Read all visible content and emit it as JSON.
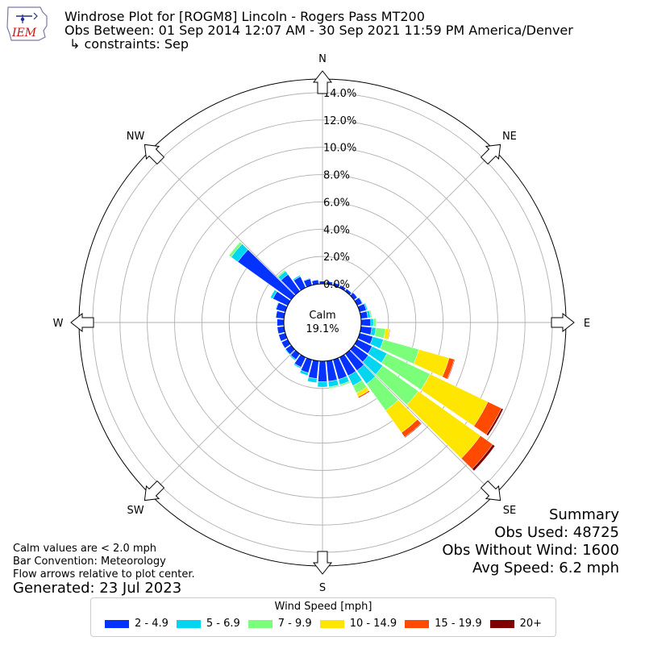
{
  "logo": {
    "text": "IEM"
  },
  "header": {
    "line1": "Windrose Plot for [ROGM8] Lincoln - Rogers Pass MT200",
    "line2": "Obs Between: 01 Sep 2014 12:07 AM - 30 Sep 2021 11:59 PM America/Denver",
    "line3": "↳ constraints: Sep"
  },
  "notes": {
    "calm": "Calm values are < 2.0 mph",
    "convention": "Bar Convention: Meteorology",
    "flow": "Flow arrows relative to plot center.",
    "generated": "Generated: 23 Jul 2023"
  },
  "summary": {
    "title": "Summary",
    "obs_used": "Obs Used: 48725",
    "obs_without_wind": "Obs Without Wind: 1600",
    "avg_speed": "Avg Speed: 6.2 mph"
  },
  "legend": {
    "title": "Wind Speed [mph]",
    "items": [
      {
        "label": "2 - 4.9",
        "color": "#0433ff"
      },
      {
        "label": "5 - 6.9",
        "color": "#00d6f0"
      },
      {
        "label": "7 - 9.9",
        "color": "#7bff7b"
      },
      {
        "label": "10 - 14.9",
        "color": "#ffe600"
      },
      {
        "label": "15 - 19.9",
        "color": "#ff4a00"
      },
      {
        "label": "20+",
        "color": "#7f0000"
      }
    ]
  },
  "chart_data": {
    "type": "windrose",
    "calm_label": "Calm",
    "calm_value": "19.1%",
    "directions": [
      "N",
      "NE",
      "E",
      "SE",
      "S",
      "SW",
      "W",
      "NW"
    ],
    "rlabels": [
      "0.0%",
      "2.0%",
      "4.0%",
      "6.0%",
      "8.0%",
      "10.0%",
      "12.0%",
      "14.0%"
    ],
    "r_range": [
      0,
      15
    ],
    "sector_angles": [
      0,
      10,
      20,
      30,
      40,
      50,
      60,
      70,
      80,
      90,
      100,
      110,
      120,
      130,
      140,
      150,
      160,
      170,
      180,
      190,
      200,
      210,
      220,
      230,
      240,
      250,
      260,
      270,
      280,
      290,
      300,
      310,
      320,
      330,
      340,
      350
    ],
    "bins": [
      "2 - 4.9",
      "5 - 6.9",
      "7 - 9.9",
      "10 - 14.9",
      "15 - 19.9",
      "20+"
    ],
    "colors": [
      "#0433ff",
      "#00d6f0",
      "#7bff7b",
      "#ffe600",
      "#ff4a00",
      "#7f0000"
    ],
    "values": [
      [
        0.2,
        0,
        0,
        0,
        0,
        0
      ],
      [
        0.2,
        0,
        0,
        0,
        0,
        0
      ],
      [
        0.2,
        0,
        0,
        0,
        0,
        0
      ],
      [
        0.2,
        0,
        0,
        0,
        0,
        0
      ],
      [
        0.2,
        0,
        0,
        0,
        0,
        0
      ],
      [
        0.3,
        0,
        0,
        0,
        0,
        0
      ],
      [
        0.4,
        0.05,
        0,
        0,
        0,
        0
      ],
      [
        0.5,
        0.1,
        0,
        0,
        0,
        0
      ],
      [
        0.5,
        0.2,
        0.1,
        0,
        0,
        0
      ],
      [
        0.7,
        0.2,
        0.2,
        0,
        0,
        0
      ],
      [
        0.8,
        0.3,
        0.7,
        0.3,
        0.05,
        0
      ],
      [
        1.0,
        0.8,
        2.7,
        2.3,
        0.4,
        0.05
      ],
      [
        1.2,
        1.2,
        3.5,
        4.7,
        1.1,
        0.15
      ],
      [
        1.3,
        1.3,
        3.2,
        5.6,
        1.1,
        0.2
      ],
      [
        1.5,
        1.2,
        2.4,
        2.0,
        0.4,
        0.05
      ],
      [
        1.5,
        0.8,
        0.6,
        0.3,
        0.1,
        0
      ],
      [
        1.5,
        0.4,
        0.1,
        0,
        0,
        0
      ],
      [
        1.5,
        0.4,
        0.1,
        0,
        0,
        0
      ],
      [
        1.5,
        0.4,
        0,
        0,
        0,
        0
      ],
      [
        1.3,
        0.3,
        0,
        0,
        0,
        0
      ],
      [
        1.0,
        0.2,
        0,
        0,
        0,
        0
      ],
      [
        0.8,
        0.1,
        0,
        0,
        0,
        0
      ],
      [
        0.5,
        0.1,
        0,
        0,
        0,
        0
      ],
      [
        0.5,
        0.05,
        0,
        0,
        0,
        0
      ],
      [
        0.5,
        0,
        0,
        0,
        0,
        0
      ],
      [
        0.5,
        0,
        0,
        0,
        0,
        0
      ],
      [
        0.5,
        0,
        0,
        0,
        0,
        0
      ],
      [
        0.5,
        0,
        0,
        0,
        0,
        0
      ],
      [
        0.6,
        0,
        0,
        0,
        0,
        0
      ],
      [
        0.7,
        0.05,
        0,
        0,
        0,
        0
      ],
      [
        1.2,
        0.2,
        0,
        0,
        0,
        0
      ],
      [
        4.8,
        0.6,
        0.2,
        0,
        0,
        0
      ],
      [
        1.5,
        0.3,
        0.1,
        0,
        0,
        0
      ],
      [
        0.9,
        0.1,
        0,
        0,
        0,
        0
      ],
      [
        0.5,
        0.05,
        0,
        0,
        0,
        0
      ],
      [
        0.3,
        0,
        0,
        0,
        0,
        0
      ]
    ]
  }
}
